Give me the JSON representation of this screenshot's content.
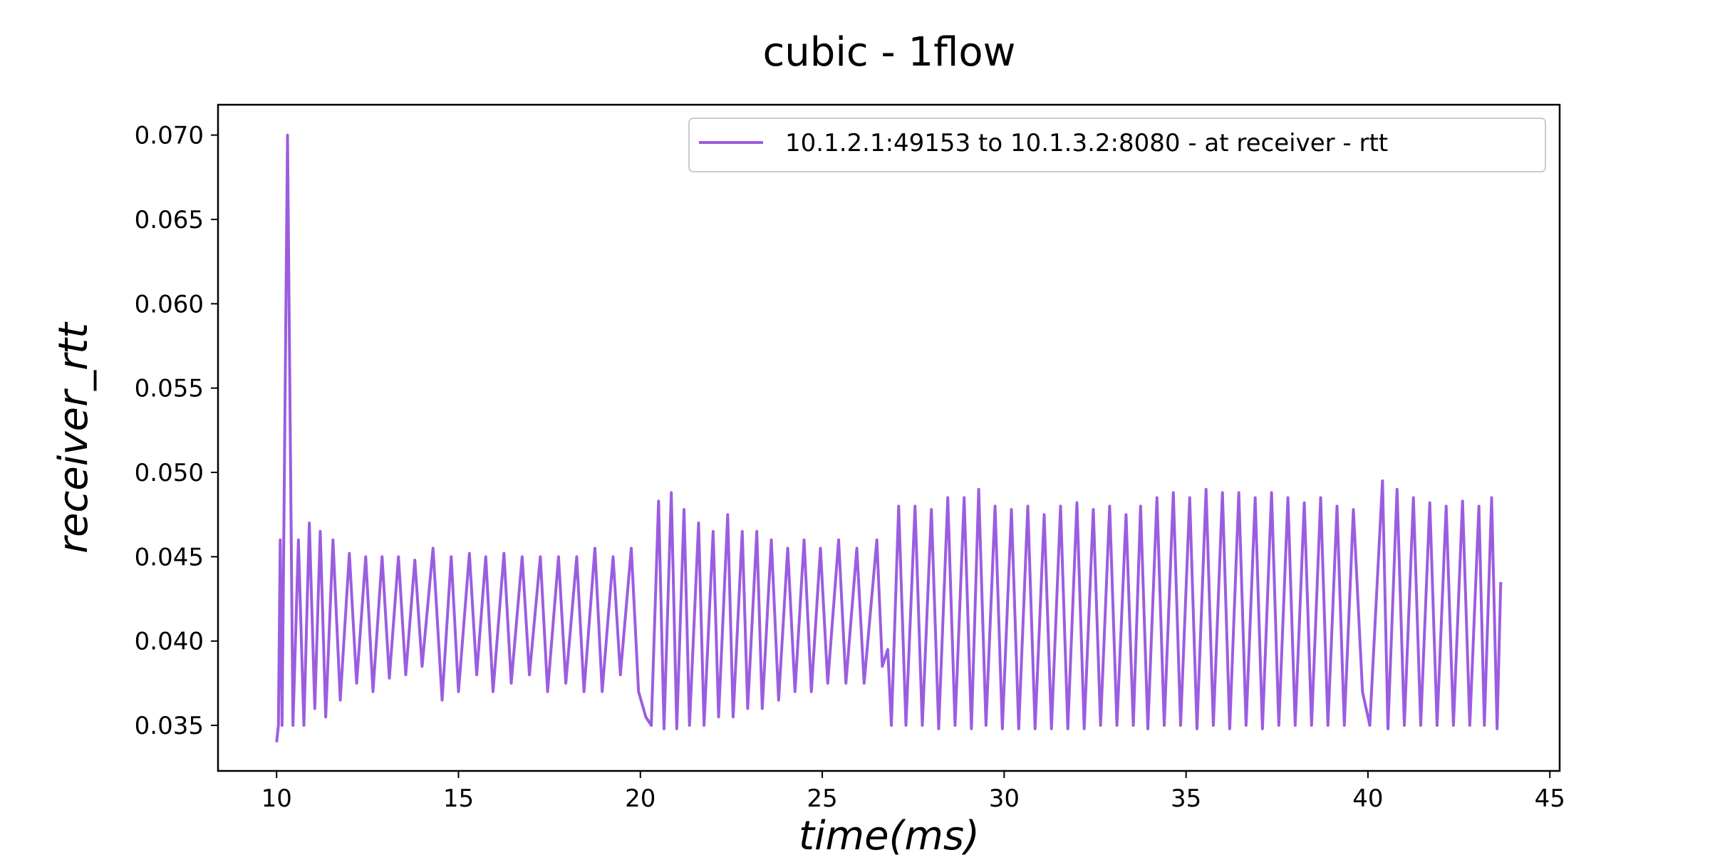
{
  "chart_data": {
    "type": "line",
    "title": "cubic - 1flow",
    "xlabel": "time(ms)",
    "ylabel": "receiver_rtt",
    "legend": "upper right",
    "xlim": [
      8.39,
      45.27
    ],
    "xticks": [
      10,
      15,
      20,
      25,
      30,
      35,
      40,
      45
    ],
    "ylim": [
      0.0323,
      0.0718
    ],
    "yticks": [
      0.035,
      {
        "value": 0.04,
        "label": "0.040"
      },
      0.045,
      {
        "value": 0.05,
        "label": "0.050"
      },
      0.055,
      {
        "value": 0.06,
        "label": "0.060"
      },
      0.065,
      {
        "value": 0.07,
        "label": "0.070"
      }
    ],
    "x": [
      10.0,
      10.05,
      10.1,
      10.15,
      10.3,
      10.45,
      10.6,
      10.75,
      10.9,
      11.05,
      11.2,
      11.35,
      11.55,
      11.75,
      12.0,
      12.2,
      12.45,
      12.65,
      12.9,
      13.1,
      13.35,
      13.55,
      13.8,
      14.0,
      14.3,
      14.55,
      14.8,
      15.0,
      15.3,
      15.5,
      15.75,
      15.95,
      16.25,
      16.45,
      16.75,
      16.95,
      17.25,
      17.45,
      17.75,
      17.95,
      18.25,
      18.45,
      18.75,
      18.95,
      19.25,
      19.45,
      19.75,
      19.95,
      20.15,
      20.3,
      20.5,
      20.65,
      20.85,
      21.0,
      21.2,
      21.35,
      21.6,
      21.75,
      22.0,
      22.15,
      22.4,
      22.55,
      22.8,
      22.95,
      23.2,
      23.35,
      23.6,
      23.8,
      24.05,
      24.25,
      24.5,
      24.7,
      24.95,
      25.15,
      25.45,
      25.65,
      25.95,
      26.15,
      26.5,
      26.65,
      26.8,
      26.9,
      27.1,
      27.3,
      27.55,
      27.75,
      28.0,
      28.2,
      28.45,
      28.65,
      28.9,
      29.1,
      29.3,
      29.5,
      29.75,
      29.95,
      30.2,
      30.4,
      30.65,
      30.85,
      31.1,
      31.3,
      31.55,
      31.75,
      32.0,
      32.2,
      32.45,
      32.65,
      32.9,
      33.1,
      33.35,
      33.55,
      33.75,
      33.95,
      34.2,
      34.4,
      34.65,
      34.85,
      35.1,
      35.3,
      35.55,
      35.75,
      36.0,
      36.2,
      36.45,
      36.65,
      36.9,
      37.1,
      37.35,
      37.55,
      37.8,
      38.0,
      38.25,
      38.45,
      38.7,
      38.9,
      39.15,
      39.35,
      39.6,
      39.85,
      40.05,
      40.4,
      40.55,
      40.8,
      41.0,
      41.25,
      41.45,
      41.7,
      41.9,
      42.15,
      42.35,
      42.6,
      42.8,
      43.05,
      43.2,
      43.4,
      43.55,
      43.65
    ],
    "series": [
      {
        "name": "10.1.2.1:49153 to 10.1.3.2:8080 - at receiver - rtt",
        "color": "#9b5de0",
        "values": [
          0.034,
          0.035,
          0.046,
          0.035,
          0.07,
          0.035,
          0.046,
          0.035,
          0.047,
          0.036,
          0.0465,
          0.0355,
          0.046,
          0.0365,
          0.0452,
          0.0375,
          0.045,
          0.037,
          0.045,
          0.0378,
          0.045,
          0.038,
          0.0448,
          0.0385,
          0.0455,
          0.0365,
          0.045,
          0.037,
          0.0452,
          0.038,
          0.045,
          0.037,
          0.0452,
          0.0375,
          0.045,
          0.038,
          0.045,
          0.037,
          0.045,
          0.0375,
          0.045,
          0.037,
          0.0455,
          0.037,
          0.045,
          0.038,
          0.0455,
          0.037,
          0.0355,
          0.035,
          0.0483,
          0.0348,
          0.0488,
          0.0348,
          0.0478,
          0.035,
          0.047,
          0.035,
          0.0465,
          0.0355,
          0.0475,
          0.0355,
          0.0465,
          0.036,
          0.0465,
          0.036,
          0.046,
          0.0365,
          0.0455,
          0.037,
          0.046,
          0.037,
          0.0455,
          0.0375,
          0.046,
          0.0375,
          0.0455,
          0.0375,
          0.046,
          0.0385,
          0.0395,
          0.035,
          0.048,
          0.035,
          0.048,
          0.035,
          0.0478,
          0.0348,
          0.0485,
          0.035,
          0.0485,
          0.0348,
          0.049,
          0.035,
          0.048,
          0.0348,
          0.0478,
          0.0348,
          0.048,
          0.0348,
          0.0475,
          0.0348,
          0.048,
          0.0348,
          0.0482,
          0.0348,
          0.0478,
          0.035,
          0.048,
          0.035,
          0.0475,
          0.035,
          0.048,
          0.0348,
          0.0485,
          0.035,
          0.0488,
          0.035,
          0.0485,
          0.0348,
          0.049,
          0.035,
          0.0488,
          0.0348,
          0.0488,
          0.035,
          0.0485,
          0.0348,
          0.0488,
          0.035,
          0.0485,
          0.035,
          0.0482,
          0.035,
          0.0485,
          0.035,
          0.048,
          0.035,
          0.0478,
          0.037,
          0.035,
          0.0495,
          0.0348,
          0.049,
          0.035,
          0.0485,
          0.035,
          0.0482,
          0.035,
          0.048,
          0.035,
          0.0483,
          0.035,
          0.048,
          0.035,
          0.0485,
          0.0348,
          0.0435
        ]
      }
    ]
  }
}
